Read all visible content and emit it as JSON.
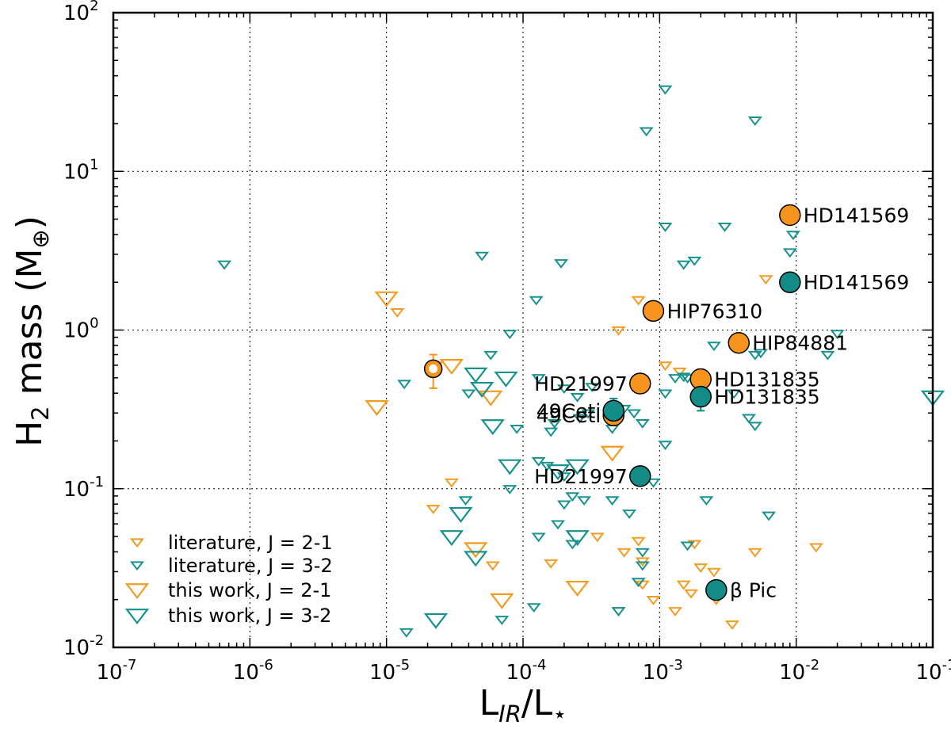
{
  "chart_data": {
    "type": "scatter",
    "xlabel": {
      "main": "L",
      "sub1": "IR",
      "slash": "/L",
      "sub2": "⋆"
    },
    "ylabel": {
      "prefix": "H",
      "sub": "2",
      "suffix": " mass (M",
      "sub2": "⊕",
      "close": ")"
    },
    "x_scale": "log",
    "y_scale": "log",
    "xlim": [
      1e-07,
      0.1
    ],
    "ylim": [
      0.01,
      100
    ],
    "grid": true,
    "x_ticks": [
      {
        "value": 1e-07,
        "base": "10",
        "exp": "-7"
      },
      {
        "value": 1e-06,
        "base": "10",
        "exp": "-6"
      },
      {
        "value": 1e-05,
        "base": "10",
        "exp": "-5"
      },
      {
        "value": 0.0001,
        "base": "10",
        "exp": "-4"
      },
      {
        "value": 0.001,
        "base": "10",
        "exp": "-3"
      },
      {
        "value": 0.01,
        "base": "10",
        "exp": "-2"
      },
      {
        "value": 0.1,
        "base": "10",
        "exp": "-1"
      }
    ],
    "y_ticks": [
      {
        "value": 0.01,
        "base": "10",
        "exp": "-2"
      },
      {
        "value": 0.1,
        "base": "10",
        "exp": "-1"
      },
      {
        "value": 1,
        "base": "10",
        "exp": "0"
      },
      {
        "value": 10,
        "base": "10",
        "exp": "1"
      },
      {
        "value": 100,
        "base": "10",
        "exp": "2"
      }
    ],
    "colors": {
      "orange": "#f39c1f",
      "teal": "#17928f",
      "orange_fill": "#f7941d",
      "teal_fill": "#138b87"
    },
    "legend": {
      "position": "lower-left",
      "entries": [
        {
          "label": "literature, J = 2-1",
          "series": "lit21"
        },
        {
          "label": "literature, J = 3-2",
          "series": "lit32"
        },
        {
          "label": "this work, J = 2-1",
          "series": "tw21"
        },
        {
          "label": "this work, J = 3-2",
          "series": "tw32"
        }
      ]
    },
    "series": [
      {
        "name": "literature, J = 2-1",
        "id": "lit21",
        "marker": "triangle-down-open",
        "size": "small",
        "color": "#f39c1f",
        "points": [
          [
            1.2e-05,
            1.3
          ],
          [
            0.0007,
            1.55
          ],
          [
            0.0005,
            1.0
          ],
          [
            0.0011,
            0.6
          ],
          [
            0.0014,
            0.55
          ],
          [
            0.006,
            2.1
          ],
          [
            2.3e-05,
            0.6
          ],
          [
            3e-05,
            0.11
          ],
          [
            2.2e-05,
            0.075
          ],
          [
            6e-05,
            0.033
          ],
          [
            0.00016,
            0.034
          ],
          [
            0.00035,
            0.05
          ],
          [
            0.00055,
            0.04
          ],
          [
            0.0007,
            0.047
          ],
          [
            0.00075,
            0.035
          ],
          [
            0.0005,
            0.017
          ],
          [
            0.0009,
            0.02
          ],
          [
            0.0013,
            0.017
          ],
          [
            0.0015,
            0.025
          ],
          [
            0.0017,
            0.022
          ],
          [
            0.002,
            0.032
          ],
          [
            0.0025,
            0.03
          ],
          [
            0.0026,
            0.02
          ],
          [
            0.0034,
            0.014
          ],
          [
            0.005,
            0.04
          ],
          [
            0.014,
            0.043
          ],
          [
            0.00075,
            0.025
          ],
          [
            0.0018,
            0.045
          ]
        ]
      },
      {
        "name": "literature, J = 3-2",
        "id": "lit32",
        "marker": "triangle-down-open",
        "size": "small",
        "color": "#17928f",
        "points": [
          [
            6.5e-07,
            2.6
          ],
          [
            5e-05,
            2.95
          ],
          [
            0.00019,
            2.65
          ],
          [
            0.0011,
            33
          ],
          [
            0.0008,
            18
          ],
          [
            0.005,
            21
          ],
          [
            0.0011,
            4.5
          ],
          [
            0.003,
            4.5
          ],
          [
            0.0095,
            4.0
          ],
          [
            0.009,
            3.1
          ],
          [
            0.0015,
            2.6
          ],
          [
            0.0018,
            2.75
          ],
          [
            0.000125,
            1.55
          ],
          [
            8e-05,
            0.95
          ],
          [
            5.8e-05,
            0.7
          ],
          [
            1.35e-05,
            0.46
          ],
          [
            4e-05,
            0.4
          ],
          [
            0.00013,
            0.5
          ],
          [
            0.0002,
            0.43
          ],
          [
            0.00025,
            0.38
          ],
          [
            0.00032,
            0.44
          ],
          [
            0.0003,
            0.3
          ],
          [
            0.00026,
            0.28
          ],
          [
            0.00017,
            0.26
          ],
          [
            9e-05,
            0.24
          ],
          [
            0.00055,
            0.32
          ],
          [
            0.00065,
            0.3
          ],
          [
            0.00075,
            0.26
          ],
          [
            0.0011,
            0.4
          ],
          [
            0.0013,
            0.5
          ],
          [
            0.0015,
            0.51
          ],
          [
            0.0025,
            0.8
          ],
          [
            0.0035,
            0.4
          ],
          [
            0.0045,
            0.28
          ],
          [
            0.005,
            0.25
          ],
          [
            0.005,
            0.7
          ],
          [
            0.0055,
            0.72
          ],
          [
            0.02,
            0.95
          ],
          [
            0.017,
            0.7
          ],
          [
            0.0011,
            0.19
          ],
          [
            0.00016,
            0.23
          ],
          [
            0.00013,
            0.15
          ],
          [
            0.00015,
            0.14
          ],
          [
            0.0002,
            0.12
          ],
          [
            0.00023,
            0.09
          ],
          [
            0.0002,
            0.08
          ],
          [
            0.00028,
            0.085
          ],
          [
            0.00045,
            0.085
          ],
          [
            0.0006,
            0.07
          ],
          [
            8e-05,
            0.1
          ],
          [
            0.00013,
            0.05
          ],
          [
            0.00018,
            0.06
          ],
          [
            0.00023,
            0.045
          ],
          [
            0.00075,
            0.04
          ],
          [
            0.00075,
            0.033
          ],
          [
            0.0016,
            0.044
          ],
          [
            0.00012,
            0.018
          ],
          [
            7e-05,
            0.015
          ],
          [
            0.0005,
            0.017
          ],
          [
            0.0007,
            0.026
          ],
          [
            1.4e-05,
            0.0125
          ],
          [
            3.8e-05,
            0.085
          ],
          [
            0.0022,
            0.085
          ],
          [
            0.0063,
            0.068
          ],
          [
            0.0009,
            0.11
          ],
          [
            0.0016,
            0.5
          ],
          [
            0.00045,
            0.24
          ]
        ]
      },
      {
        "name": "this work, J = 2-1",
        "id": "tw21",
        "marker": "triangle-down-open",
        "size": "large",
        "color": "#f39c1f",
        "points": [
          [
            1e-05,
            1.6
          ],
          [
            8.5e-06,
            0.33
          ],
          [
            3e-05,
            0.6
          ],
          [
            5.8e-05,
            0.38
          ],
          [
            0.00045,
            0.17
          ],
          [
            4.5e-05,
            0.042
          ],
          [
            7e-05,
            0.02
          ],
          [
            0.00025,
            0.024
          ]
        ]
      },
      {
        "name": "this work, J = 3-2",
        "id": "tw32",
        "marker": "triangle-down-open",
        "size": "large",
        "color": "#17928f",
        "points": [
          [
            4.5e-05,
            0.53
          ],
          [
            7.5e-05,
            0.5
          ],
          [
            5e-05,
            0.43
          ],
          [
            6e-05,
            0.25
          ],
          [
            8e-05,
            0.14
          ],
          [
            0.00018,
            0.13
          ],
          [
            0.00025,
            0.14
          ],
          [
            3.5e-05,
            0.07
          ],
          [
            3e-05,
            0.05
          ],
          [
            4.5e-05,
            0.037
          ],
          [
            0.00025,
            0.05
          ],
          [
            2.3e-05,
            0.015
          ],
          [
            0.1,
            0.38
          ]
        ]
      }
    ],
    "detections": [
      {
        "label": "HD141569",
        "x": 0.009,
        "y": 5.3,
        "color": "#f7941d",
        "label_side": "right"
      },
      {
        "label": "HD141569",
        "x": 0.009,
        "y": 2.0,
        "color": "#138b87",
        "label_side": "right"
      },
      {
        "label": "HIP76310",
        "x": 0.0009,
        "y": 1.32,
        "color": "#f7941d",
        "label_side": "right"
      },
      {
        "label": "HIP84881",
        "x": 0.0038,
        "y": 0.83,
        "color": "#f7941d",
        "label_side": "right"
      },
      {
        "label": "HD131835",
        "x": 0.002,
        "y": 0.49,
        "color": "#f7941d",
        "label_side": "right",
        "err_lo": 0.43
      },
      {
        "label": "HD131835",
        "x": 0.002,
        "y": 0.38,
        "color": "#138b87",
        "label_side": "right",
        "err_lo": 0.31
      },
      {
        "label": "HD21997",
        "x": 0.00072,
        "y": 0.46,
        "color": "#f7941d",
        "label_side": "left"
      },
      {
        "label": "HD21997",
        "x": 0.00072,
        "y": 0.12,
        "color": "#138b87",
        "label_side": "left"
      },
      {
        "label": "49Ceti",
        "x": 0.00046,
        "y": 0.29,
        "color": "#f7941d",
        "label_side": "left"
      },
      {
        "label": "49Ceti",
        "x": 0.00046,
        "y": 0.31,
        "color": "#138b87",
        "label_side": "left",
        "err_hi": 0.37
      },
      {
        "label": "β Pic",
        "x": 0.0026,
        "y": 0.023,
        "color": "#138b87",
        "label_side": "right"
      }
    ],
    "special": {
      "x": 2.2e-05,
      "y": 0.57,
      "err_lo": 0.43,
      "err_hi": 0.7,
      "color": "#f7941d"
    }
  }
}
